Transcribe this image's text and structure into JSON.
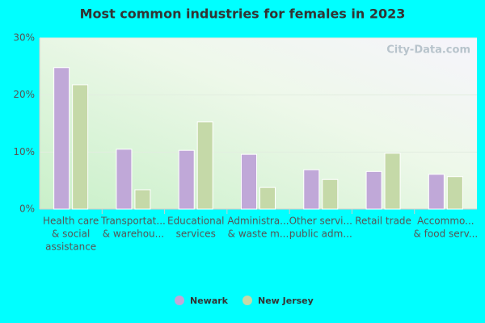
{
  "chart_data": {
    "type": "bar",
    "title": "Most common industries for females in 2023",
    "watermark": "City-Data.com",
    "categories": [
      [
        "Health care",
        "& social",
        "assistance"
      ],
      [
        "Transportat...",
        "& warehou..."
      ],
      [
        "Educational",
        "services"
      ],
      [
        "Administra...",
        "& waste m..."
      ],
      [
        "Other servi...",
        "public adm..."
      ],
      [
        "Retail trade"
      ],
      [
        "Accommo...",
        "& food serv..."
      ]
    ],
    "series": [
      {
        "name": "Newark",
        "color": "#c0a8d8",
        "values": [
          24.8,
          10.5,
          10.3,
          9.6,
          6.9,
          6.6,
          6.1
        ]
      },
      {
        "name": "New Jersey",
        "color": "#c5d9a8",
        "values": [
          21.8,
          3.4,
          15.3,
          3.8,
          5.2,
          9.8,
          5.7
        ]
      }
    ],
    "ylim": [
      0,
      30
    ],
    "yticks": [
      {
        "value": 0,
        "label": "0%"
      },
      {
        "value": 10,
        "label": "10%"
      },
      {
        "value": 20,
        "label": "20%"
      },
      {
        "value": 30,
        "label": "30%"
      }
    ],
    "grid": true
  }
}
